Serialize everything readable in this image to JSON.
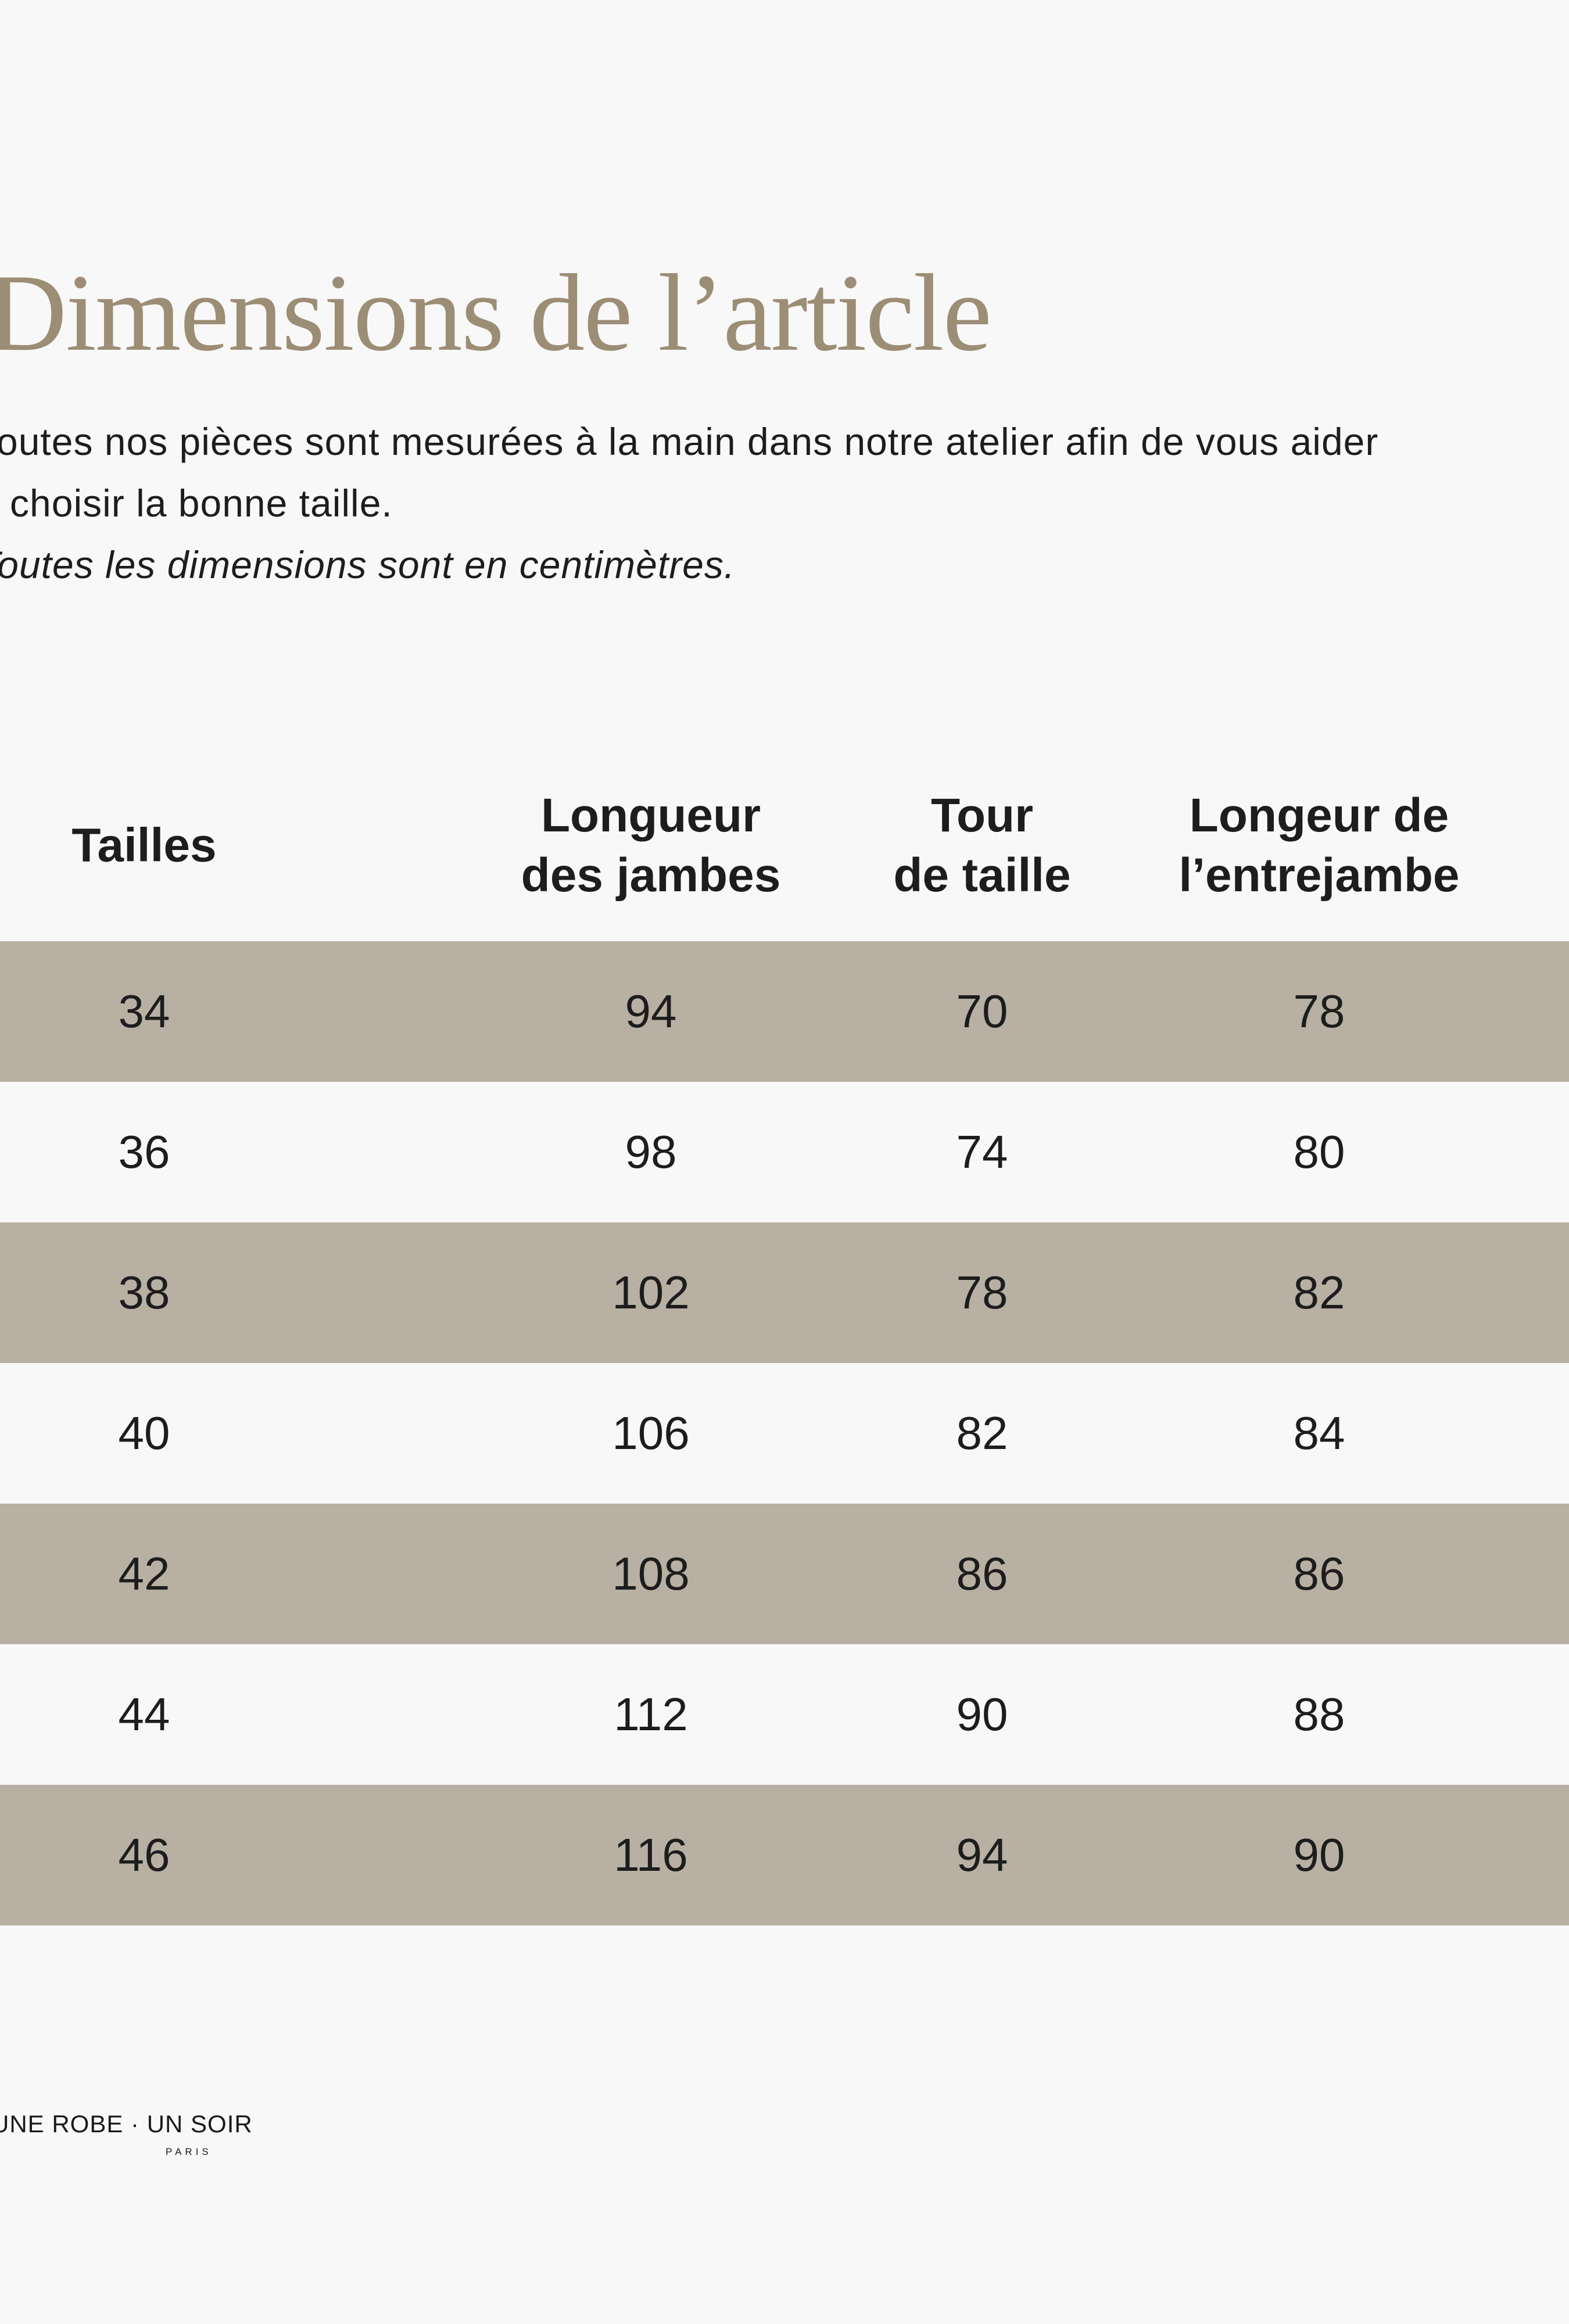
{
  "page": {
    "background": "#f8f8f8",
    "title": "Dimensions de l’article",
    "title_color": "#9c8d75",
    "text_color": "#1d1d1d",
    "intro_line1": "Toutes nos pièces sont mesurées à la main dans notre atelier afin de vous aider",
    "intro_line2": "à choisir la bonne taille.",
    "units_note": "Toutes les dimensions sont en centimètres."
  },
  "table": {
    "row_highlight_color": "#b7b0a3",
    "columns": [
      {
        "line1": "Tailles",
        "line2": ""
      },
      {
        "line1": "Longueur",
        "line2": "des jambes"
      },
      {
        "line1": "Tour",
        "line2": "de taille"
      },
      {
        "line1": "Longeur de",
        "line2": "l’entrejambe"
      }
    ],
    "rows": [
      {
        "taille": "34",
        "longueur_jambes": "94",
        "tour_taille": "70",
        "longueur_entrejambe": "78"
      },
      {
        "taille": "36",
        "longueur_jambes": "98",
        "tour_taille": "74",
        "longueur_entrejambe": "80"
      },
      {
        "taille": "38",
        "longueur_jambes": "102",
        "tour_taille": "78",
        "longueur_entrejambe": "82"
      },
      {
        "taille": "40",
        "longueur_jambes": "106",
        "tour_taille": "82",
        "longueur_entrejambe": "84"
      },
      {
        "taille": "42",
        "longueur_jambes": "108",
        "tour_taille": "86",
        "longueur_entrejambe": "86"
      },
      {
        "taille": "44",
        "longueur_jambes": "112",
        "tour_taille": "90",
        "longueur_entrejambe": "88"
      },
      {
        "taille": "46",
        "longueur_jambes": "116",
        "tour_taille": "94",
        "longueur_entrejambe": "90"
      }
    ]
  },
  "logo": {
    "wordmark": "UNE ROBE · UN SOIR",
    "city": "PARIS"
  }
}
